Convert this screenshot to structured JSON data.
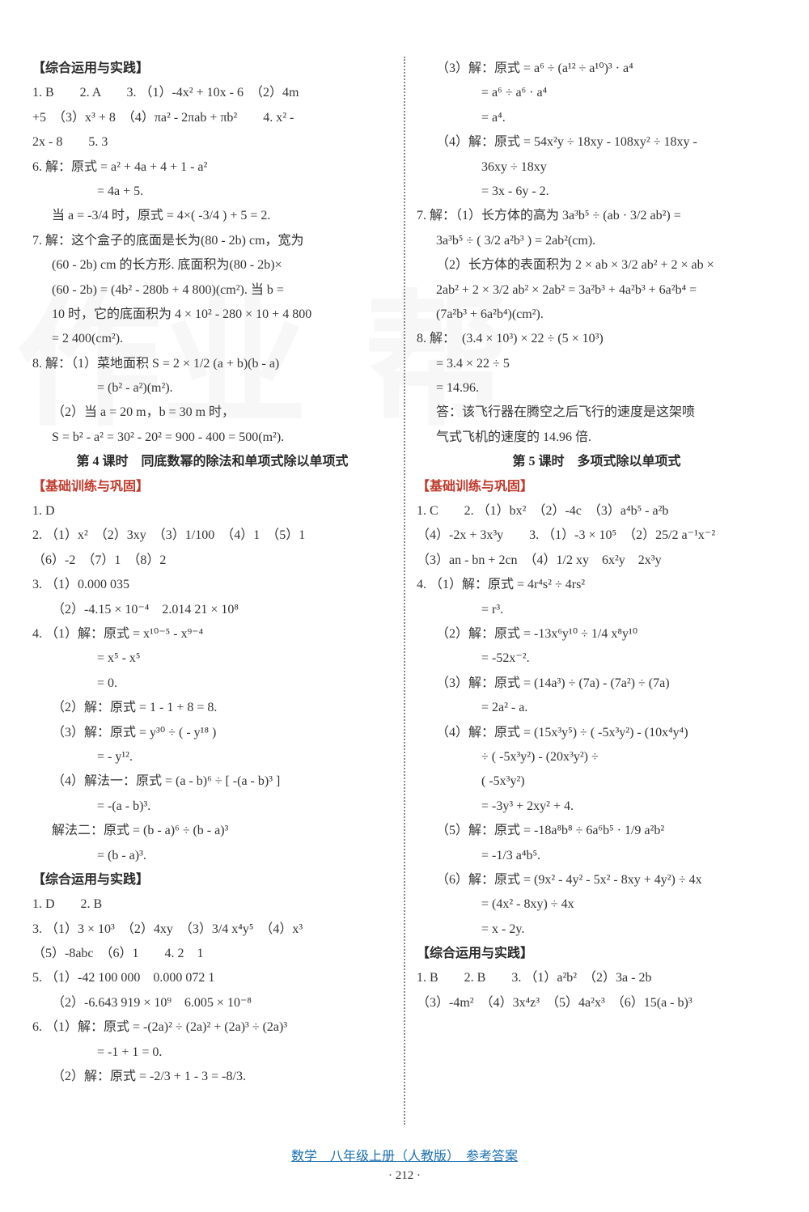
{
  "footer": {
    "link": "数学　八年级上册（人教版）　参考答案",
    "page": "· 212 ·"
  },
  "watermark": {
    "a": "作业",
    "b": "帮"
  },
  "left": [
    {
      "cls": "sec-title",
      "t": "【综合运用与实践】"
    },
    {
      "t": "1. B　　2. A　　3. （1）-4x² + 10x - 6　（2）4m"
    },
    {
      "t": "+5　（3）x³ + 8　（4）πa² - 2πab + πb²　　4. x² -"
    },
    {
      "t": "2x - 8　　5. 3"
    },
    {
      "t": "6. 解：原式 = a² + 4a + 4 + 1 - a²"
    },
    {
      "cls": "indent2",
      "t": "= 4a + 5."
    },
    {
      "cls": "indent",
      "t": "当 a = -3/4 时，原式 = 4×( -3/4 ) + 5 = 2."
    },
    {
      "t": "7. 解：这个盒子的底面是长为(80 - 2b) cm，宽为"
    },
    {
      "cls": "indent",
      "t": "(60 - 2b) cm 的长方形. 底面积为(80 - 2b)×"
    },
    {
      "cls": "indent",
      "t": "(60 - 2b) = (4b² - 280b + 4 800)(cm²). 当 b ="
    },
    {
      "cls": "indent",
      "t": "10 时，它的底面积为 4 × 10² - 280 × 10 + 4 800"
    },
    {
      "cls": "indent",
      "t": "= 2 400(cm²)."
    },
    {
      "t": "8. 解：（1）菜地面积 S = 2 × 1/2 (a + b)(b - a)"
    },
    {
      "cls": "indent2",
      "t": "= (b² - a²)(m²)."
    },
    {
      "cls": "indent",
      "t": "（2）当 a = 20 m，b = 30 m 时，"
    },
    {
      "cls": "indent",
      "t": "S = b² - a² = 30² - 20² = 900 - 400 = 500(m²)."
    },
    {
      "cls": "sec-title center",
      "t": "第 4 课时　同底数幂的除法和单项式除以单项式"
    },
    {
      "cls": "sec-sub",
      "t": "【基础训练与巩固】"
    },
    {
      "t": "1. D"
    },
    {
      "t": "2. （1）x²　（2）3xy　（3）1/100　（4）1　（5）1"
    },
    {
      "t": "（6）-2　（7）1　（8）2"
    },
    {
      "t": "3. （1）0.000 035"
    },
    {
      "cls": "indent",
      "t": "（2）-4.15 × 10⁻⁴　2.014 21 × 10⁸"
    },
    {
      "t": "4. （1）解：原式 = x¹⁰⁻⁵ - x⁹⁻⁴"
    },
    {
      "cls": "indent2",
      "t": "= x⁵ - x⁵"
    },
    {
      "cls": "indent2",
      "t": "= 0."
    },
    {
      "cls": "indent",
      "t": "（2）解：原式 = 1 - 1 + 8 = 8."
    },
    {
      "cls": "indent",
      "t": "（3）解：原式 = y³⁰ ÷ ( - y¹⁸ )"
    },
    {
      "cls": "indent2",
      "t": "= - y¹²."
    },
    {
      "cls": "indent",
      "t": "（4）解法一：原式 = (a - b)⁶ ÷ [ -(a - b)³ ]"
    },
    {
      "cls": "indent2",
      "t": "= -(a - b)³."
    },
    {
      "cls": "indent",
      "t": "解法二：原式 = (b - a)⁶ ÷ (b - a)³"
    },
    {
      "cls": "indent2",
      "t": "= (b - a)³."
    },
    {
      "cls": "sec-title",
      "t": "【综合运用与实践】"
    },
    {
      "t": "1. D　　2. B"
    },
    {
      "t": "3. （1）3 × 10³　（2）4xy　（3）3/4 x⁴y⁵　（4）x³"
    },
    {
      "t": "（5）-8abc　（6）1　　4. 2　1"
    },
    {
      "t": "5. （1）-42 100 000　0.000 072 1"
    },
    {
      "cls": "indent",
      "t": "（2）-6.643 919 × 10⁹　6.005 × 10⁻⁸"
    },
    {
      "t": "6. （1）解：原式 = -(2a)² ÷ (2a)² + (2a)³ ÷ (2a)³"
    },
    {
      "cls": "indent2",
      "t": "= -1 + 1 = 0."
    },
    {
      "cls": "indent",
      "t": "（2）解：原式 = -2/3 + 1 - 3 = -8/3."
    }
  ],
  "right": [
    {
      "cls": "indent",
      "t": "（3）解：原式 = a⁶ ÷ (a¹² ÷ a¹⁰)³ · a⁴"
    },
    {
      "cls": "indent2",
      "t": "= a⁶ ÷ a⁶ · a⁴"
    },
    {
      "cls": "indent2",
      "t": "= a⁴."
    },
    {
      "cls": "indent",
      "t": "（4）解：原式 = 54x²y ÷ 18xy - 108xy² ÷ 18xy -"
    },
    {
      "cls": "indent2",
      "t": "36xy ÷ 18xy"
    },
    {
      "cls": "indent2",
      "t": "= 3x - 6y - 2."
    },
    {
      "t": "7. 解：（1）长方体的高为 3a³b⁵ ÷ (ab · 3/2 ab²) ="
    },
    {
      "cls": "indent",
      "t": "3a³b⁵ ÷ ( 3/2 a²b³ ) = 2ab²(cm)."
    },
    {
      "cls": "indent",
      "t": "（2）长方体的表面积为 2 × ab × 3/2 ab² + 2 × ab ×"
    },
    {
      "cls": "indent",
      "t": "2ab² + 2 × 3/2 ab² × 2ab² = 3a²b³ + 4a²b³ + 6a²b⁴ ="
    },
    {
      "cls": "indent",
      "t": "(7a²b³ + 6a²b⁴)(cm²)."
    },
    {
      "t": "8. 解：　(3.4 × 10³) × 22 ÷ (5 × 10³)"
    },
    {
      "cls": "indent",
      "t": "= 3.4 × 22 ÷ 5"
    },
    {
      "cls": "indent",
      "t": "= 14.96."
    },
    {
      "cls": "indent",
      "t": "答：该飞行器在腾空之后飞行的速度是这架喷"
    },
    {
      "cls": "indent",
      "t": "气式飞机的速度的 14.96 倍."
    },
    {
      "cls": "sec-title center",
      "t": "第 5 课时　多项式除以单项式"
    },
    {
      "cls": "sec-sub",
      "t": "【基础训练与巩固】"
    },
    {
      "t": "1. C　　2. （1）bx²　（2）-4c　（3）a⁴b⁵ - a²b"
    },
    {
      "t": "（4）-2x + 3x³y　　3. （1）-3 × 10⁵　（2）25/2 a⁻¹x⁻²"
    },
    {
      "t": "（3）an - bn + 2cn　（4）1/2 xy　6x²y　2x³y"
    },
    {
      "t": "4. （1）解：原式 = 4r⁴s² ÷ 4rs²"
    },
    {
      "cls": "indent2",
      "t": "= r³."
    },
    {
      "cls": "indent",
      "t": "（2）解：原式 = -13x⁶y¹⁰ ÷ 1/4 x⁸y¹⁰"
    },
    {
      "cls": "indent2",
      "t": "= -52x⁻²."
    },
    {
      "cls": "indent",
      "t": "（3）解：原式 = (14a³) ÷ (7a) - (7a²) ÷ (7a)"
    },
    {
      "cls": "indent2",
      "t": "= 2a² - a."
    },
    {
      "cls": "indent",
      "t": "（4）解：原式 = (15x³y⁵) ÷ ( -5x³y²) - (10x⁴y⁴)"
    },
    {
      "cls": "indent2",
      "t": "÷ ( -5x³y²) - (20x³y²) ÷"
    },
    {
      "cls": "indent2",
      "t": "( -5x³y²)"
    },
    {
      "cls": "indent2",
      "t": "= -3y³ + 2xy² + 4."
    },
    {
      "cls": "indent",
      "t": "（5）解：原式 = -18a⁸b⁸ ÷ 6a⁶b⁵ · 1/9 a²b²"
    },
    {
      "cls": "indent2",
      "t": "= -1/3 a⁴b⁵."
    },
    {
      "cls": "indent",
      "t": "（6）解：原式 = (9x² - 4y² - 5x² - 8xy + 4y²) ÷ 4x"
    },
    {
      "cls": "indent2",
      "t": "= (4x² - 8xy) ÷ 4x"
    },
    {
      "cls": "indent2",
      "t": "= x - 2y."
    },
    {
      "cls": "sec-title",
      "t": "【综合运用与实践】"
    },
    {
      "t": "1. B　　2. B　　3. （1）a²b²　（2）3a - 2b"
    },
    {
      "t": "（3）-4m²　（4）3x⁴z³　（5）4a²x³　（6）15(a - b)³"
    }
  ]
}
